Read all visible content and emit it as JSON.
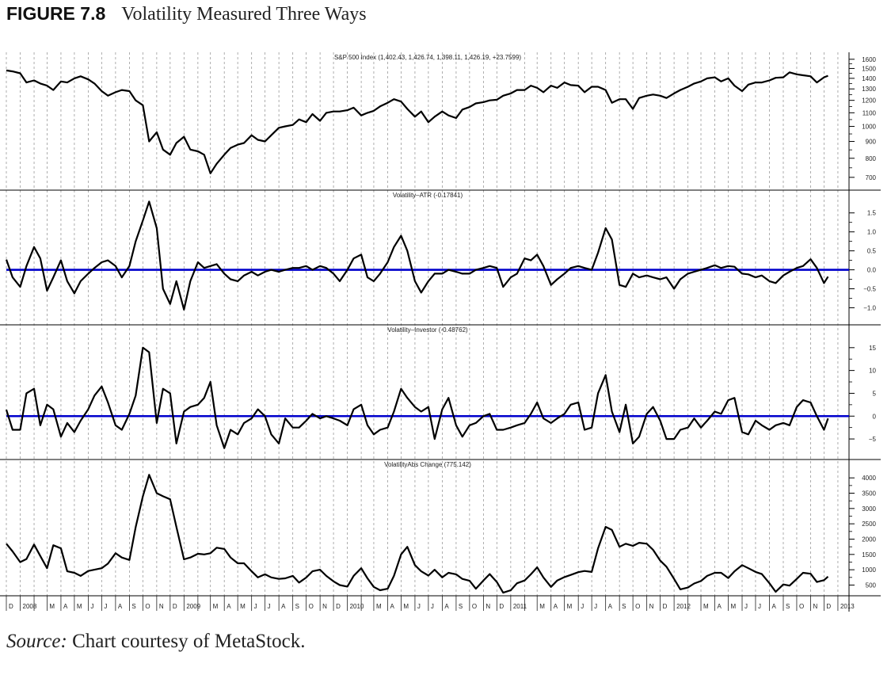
{
  "figure": {
    "number": "FIGURE 7.8",
    "title": "Volatility Measured Three Ways"
  },
  "caption": {
    "source_label": "Source:",
    "text": " Chart courtesy of MetaStock."
  },
  "colors": {
    "series": "#000000",
    "zero_line": "#0000cc",
    "grid": "#9a9a9a"
  },
  "chart_data": {
    "type": "line",
    "grid": "vertical dashed monthly",
    "x_tick_labels": [
      {
        "month": "2007-12",
        "label": "D"
      },
      {
        "month": "2008-01",
        "label": "2008"
      },
      {
        "month": "2008-02",
        "label": ""
      },
      {
        "month": "2008-03",
        "label": "M"
      },
      {
        "month": "2008-04",
        "label": "A"
      },
      {
        "month": "2008-05",
        "label": "M"
      },
      {
        "month": "2008-06",
        "label": "J"
      },
      {
        "month": "2008-07",
        "label": "J"
      },
      {
        "month": "2008-08",
        "label": "A"
      },
      {
        "month": "2008-09",
        "label": "S"
      },
      {
        "month": "2008-10",
        "label": "O"
      },
      {
        "month": "2008-11",
        "label": "N"
      },
      {
        "month": "2008-12",
        "label": "D"
      },
      {
        "month": "2009-01",
        "label": "2009"
      },
      {
        "month": "2009-02",
        "label": ""
      },
      {
        "month": "2009-03",
        "label": "M"
      },
      {
        "month": "2009-04",
        "label": "A"
      },
      {
        "month": "2009-05",
        "label": "M"
      },
      {
        "month": "2009-06",
        "label": "J"
      },
      {
        "month": "2009-07",
        "label": "J"
      },
      {
        "month": "2009-08",
        "label": "A"
      },
      {
        "month": "2009-09",
        "label": "S"
      },
      {
        "month": "2009-10",
        "label": "O"
      },
      {
        "month": "2009-11",
        "label": "N"
      },
      {
        "month": "2009-12",
        "label": "D"
      },
      {
        "month": "2010-01",
        "label": "2010"
      },
      {
        "month": "2010-02",
        "label": ""
      },
      {
        "month": "2010-03",
        "label": "M"
      },
      {
        "month": "2010-04",
        "label": "A"
      },
      {
        "month": "2010-05",
        "label": "M"
      },
      {
        "month": "2010-06",
        "label": "J"
      },
      {
        "month": "2010-07",
        "label": "J"
      },
      {
        "month": "2010-08",
        "label": "A"
      },
      {
        "month": "2010-09",
        "label": "S"
      },
      {
        "month": "2010-10",
        "label": "O"
      },
      {
        "month": "2010-11",
        "label": "N"
      },
      {
        "month": "2010-12",
        "label": "D"
      },
      {
        "month": "2011-01",
        "label": "2011"
      },
      {
        "month": "2011-02",
        "label": ""
      },
      {
        "month": "2011-03",
        "label": "M"
      },
      {
        "month": "2011-04",
        "label": "A"
      },
      {
        "month": "2011-05",
        "label": "M"
      },
      {
        "month": "2011-06",
        "label": "J"
      },
      {
        "month": "2011-07",
        "label": "J"
      },
      {
        "month": "2011-08",
        "label": "A"
      },
      {
        "month": "2011-09",
        "label": "S"
      },
      {
        "month": "2011-10",
        "label": "O"
      },
      {
        "month": "2011-11",
        "label": "N"
      },
      {
        "month": "2011-12",
        "label": "D"
      },
      {
        "month": "2012-01",
        "label": "2012"
      },
      {
        "month": "2012-02",
        "label": ""
      },
      {
        "month": "2012-03",
        "label": "M"
      },
      {
        "month": "2012-04",
        "label": "A"
      },
      {
        "month": "2012-05",
        "label": "M"
      },
      {
        "month": "2012-06",
        "label": "J"
      },
      {
        "month": "2012-07",
        "label": "J"
      },
      {
        "month": "2012-08",
        "label": "A"
      },
      {
        "month": "2012-09",
        "label": "S"
      },
      {
        "month": "2012-10",
        "label": "O"
      },
      {
        "month": "2012-11",
        "label": "N"
      },
      {
        "month": "2012-12",
        "label": "D"
      },
      {
        "month": "2013-01",
        "label": "2013"
      }
    ],
    "x": [
      "2007-12-01",
      "2007-12-15",
      "2008-01-01",
      "2008-01-15",
      "2008-02-01",
      "2008-02-15",
      "2008-03-01",
      "2008-03-15",
      "2008-04-01",
      "2008-04-15",
      "2008-05-01",
      "2008-05-15",
      "2008-06-01",
      "2008-06-15",
      "2008-07-01",
      "2008-07-15",
      "2008-08-01",
      "2008-08-15",
      "2008-09-01",
      "2008-09-15",
      "2008-10-01",
      "2008-10-15",
      "2008-11-01",
      "2008-11-15",
      "2008-12-01",
      "2008-12-15",
      "2009-01-01",
      "2009-01-15",
      "2009-02-01",
      "2009-02-15",
      "2009-03-01",
      "2009-03-15",
      "2009-04-01",
      "2009-04-15",
      "2009-05-01",
      "2009-05-15",
      "2009-06-01",
      "2009-06-15",
      "2009-07-01",
      "2009-07-15",
      "2009-08-01",
      "2009-08-15",
      "2009-09-01",
      "2009-09-15",
      "2009-10-01",
      "2009-10-15",
      "2009-11-01",
      "2009-11-15",
      "2009-12-01",
      "2009-12-15",
      "2010-01-01",
      "2010-01-15",
      "2010-02-01",
      "2010-02-15",
      "2010-03-01",
      "2010-03-15",
      "2010-04-01",
      "2010-04-15",
      "2010-05-01",
      "2010-05-15",
      "2010-06-01",
      "2010-06-15",
      "2010-07-01",
      "2010-07-15",
      "2010-08-01",
      "2010-08-15",
      "2010-09-01",
      "2010-09-15",
      "2010-10-01",
      "2010-10-15",
      "2010-11-01",
      "2010-11-15",
      "2010-12-01",
      "2010-12-15",
      "2011-01-01",
      "2011-01-15",
      "2011-02-01",
      "2011-02-15",
      "2011-03-01",
      "2011-03-15",
      "2011-04-01",
      "2011-04-15",
      "2011-05-01",
      "2011-05-15",
      "2011-06-01",
      "2011-06-15",
      "2011-07-01",
      "2011-07-15",
      "2011-08-01",
      "2011-08-15",
      "2011-09-01",
      "2011-09-15",
      "2011-10-01",
      "2011-10-15",
      "2011-11-01",
      "2011-11-15",
      "2011-12-01",
      "2011-12-15",
      "2012-01-01",
      "2012-01-15",
      "2012-02-01",
      "2012-02-15",
      "2012-03-01",
      "2012-03-15",
      "2012-04-01",
      "2012-04-15",
      "2012-05-01",
      "2012-05-15",
      "2012-06-01",
      "2012-06-15",
      "2012-07-01",
      "2012-07-15",
      "2012-08-01",
      "2012-08-15",
      "2012-09-01",
      "2012-09-15",
      "2012-10-01",
      "2012-10-15",
      "2012-11-01",
      "2012-11-15",
      "2012-12-01",
      "2012-12-10"
    ],
    "panels": [
      {
        "title": "S&P 500 Index (1,402.43, 1,426.74, 1,398.11, 1,426.19, +23.7599)",
        "scale": "log",
        "ylim": [
          640,
          1680
        ],
        "yticks": [
          700,
          800,
          900,
          1000,
          1100,
          1200,
          1300,
          1400,
          1500,
          1600
        ],
        "ytick_labels": [
          "700",
          "800",
          "900",
          "1000",
          "1100",
          "1200",
          "1300",
          "1400",
          "1500",
          "1600"
        ],
        "reference_line": null,
        "values": [
          1480,
          1470,
          1450,
          1360,
          1380,
          1350,
          1330,
          1290,
          1370,
          1360,
          1400,
          1420,
          1390,
          1350,
          1280,
          1240,
          1270,
          1290,
          1280,
          1200,
          1160,
          900,
          960,
          850,
          820,
          890,
          930,
          850,
          840,
          820,
          720,
          770,
          820,
          860,
          880,
          890,
          940,
          910,
          900,
          940,
          990,
          1000,
          1010,
          1050,
          1030,
          1090,
          1040,
          1100,
          1110,
          1110,
          1120,
          1140,
          1080,
          1100,
          1115,
          1150,
          1180,
          1210,
          1190,
          1130,
          1070,
          1110,
          1030,
          1070,
          1110,
          1080,
          1060,
          1125,
          1145,
          1175,
          1185,
          1200,
          1205,
          1240,
          1260,
          1290,
          1290,
          1330,
          1310,
          1270,
          1330,
          1310,
          1360,
          1335,
          1330,
          1270,
          1320,
          1320,
          1290,
          1180,
          1210,
          1210,
          1130,
          1220,
          1240,
          1250,
          1240,
          1220,
          1260,
          1290,
          1320,
          1350,
          1370,
          1400,
          1410,
          1370,
          1400,
          1330,
          1280,
          1340,
          1360,
          1360,
          1380,
          1405,
          1410,
          1460,
          1440,
          1430,
          1420,
          1360,
          1410,
          1426
        ]
      },
      {
        "title": "Volatility–ATR (-0.17841)",
        "scale": "linear",
        "ylim": [
          -1.45,
          2.1
        ],
        "yticks": [
          -1.0,
          -0.5,
          0.0,
          0.5,
          1.0,
          1.5
        ],
        "ytick_labels": [
          "−1.0",
          "−0.5",
          "0.0",
          "0.5",
          "1.0",
          "1.5"
        ],
        "reference_line": 0,
        "values": [
          0.27,
          -0.2,
          -0.45,
          0.1,
          0.6,
          0.3,
          -0.55,
          -0.2,
          0.25,
          -0.3,
          -0.62,
          -0.3,
          -0.1,
          0.05,
          0.2,
          0.25,
          0.1,
          -0.2,
          0.1,
          0.75,
          1.3,
          1.8,
          1.1,
          -0.5,
          -0.9,
          -0.3,
          -1.05,
          -0.3,
          0.2,
          0.05,
          0.1,
          0.15,
          -0.1,
          -0.25,
          -0.3,
          -0.15,
          -0.05,
          -0.15,
          -0.05,
          0,
          -0.05,
          0,
          0.05,
          0.05,
          0.1,
          0,
          0.1,
          0.05,
          -0.1,
          -0.3,
          0,
          0.3,
          0.4,
          -0.2,
          -0.3,
          -0.1,
          0.2,
          0.6,
          0.9,
          0.5,
          -0.3,
          -0.6,
          -0.3,
          -0.1,
          -0.1,
          0,
          -0.05,
          -0.1,
          -0.1,
          0,
          0.05,
          0.1,
          0.05,
          -0.45,
          -0.2,
          -0.1,
          0.3,
          0.25,
          0.4,
          0.1,
          -0.4,
          -0.25,
          -0.1,
          0.05,
          0.1,
          0.05,
          0,
          0.45,
          1.1,
          0.8,
          -0.4,
          -0.45,
          -0.1,
          -0.2,
          -0.15,
          -0.2,
          -0.25,
          -0.2,
          -0.5,
          -0.25,
          -0.1,
          -0.05,
          0,
          0.05,
          0.12,
          0.05,
          0.1,
          0.08,
          -0.1,
          -0.12,
          -0.2,
          -0.15,
          -0.3,
          -0.35,
          -0.15,
          -0.05,
          0.05,
          0.1,
          0.28,
          0.05,
          -0.35,
          -0.18
        ]
      },
      {
        "title": "Volatility–Investor (-0.48762)",
        "scale": "linear",
        "ylim": [
          -9.5,
          20
        ],
        "yticks": [
          -5,
          0,
          5,
          10,
          15
        ],
        "ytick_labels": [
          "−5",
          "0",
          "5",
          "10",
          "15"
        ],
        "reference_line": 0,
        "values": [
          1.4,
          -3,
          -3,
          5,
          6,
          -2,
          2.5,
          1.5,
          -4.5,
          -1.5,
          -3.5,
          -1,
          1.5,
          4.5,
          6.5,
          3,
          -2,
          -3,
          0.5,
          4.5,
          15,
          14,
          -1.5,
          6,
          5,
          -6,
          1,
          2,
          2.5,
          4,
          7.5,
          -2,
          -7,
          -3,
          -4,
          -1.5,
          -0.5,
          1.5,
          0,
          -4,
          -6,
          -0.5,
          -2.5,
          -2.5,
          -1,
          0.5,
          -0.5,
          0,
          -0.5,
          -1,
          -2,
          1.5,
          2.5,
          -2,
          -4,
          -3,
          -2.5,
          1,
          6,
          4,
          2,
          1,
          2,
          -5,
          1.5,
          4,
          -2,
          -4.5,
          -2,
          -1.5,
          0,
          0.5,
          -3,
          -3,
          -2.5,
          -2,
          -1.5,
          0.5,
          3,
          -0.5,
          -1.5,
          -0.5,
          0.5,
          2.5,
          3,
          -3,
          -2.5,
          5,
          9,
          1,
          -3.5,
          2.5,
          -6,
          -4.5,
          0.5,
          2,
          -1,
          -5,
          -5,
          -3,
          -2.5,
          -0.5,
          -2.5,
          -1,
          1,
          0.5,
          3.5,
          4,
          -3.5,
          -4,
          -1,
          -2,
          -3,
          -2,
          -1.5,
          -2,
          2,
          3.5,
          3,
          0,
          -3,
          -0.49
        ]
      },
      {
        "title": "VolatilityAbs Change (775.142)",
        "scale": "linear",
        "ylim": [
          150,
          4600
        ],
        "yticks": [
          500,
          1000,
          1500,
          2000,
          2500,
          3000,
          3500,
          4000
        ],
        "ytick_labels": [
          "500",
          "1000",
          "1500",
          "2000",
          "2500",
          "3000",
          "3500",
          "4000"
        ],
        "reference_line": null,
        "values": [
          1850,
          1600,
          1250,
          1350,
          1825,
          1450,
          1050,
          1800,
          1700,
          950,
          900,
          800,
          960,
          1000,
          1050,
          1200,
          1540,
          1400,
          1320,
          2390,
          3400,
          4100,
          3500,
          3400,
          3300,
          2400,
          1340,
          1400,
          1520,
          1500,
          1540,
          1720,
          1680,
          1400,
          1210,
          1210,
          950,
          750,
          850,
          750,
          700,
          720,
          800,
          580,
          745,
          950,
          1000,
          800,
          620,
          500,
          450,
          800,
          1050,
          720,
          440,
          330,
          380,
          800,
          1500,
          1750,
          1150,
          950,
          810,
          1000,
          750,
          900,
          850,
          700,
          640,
          380,
          650,
          860,
          600,
          250,
          330,
          560,
          650,
          850,
          1080,
          750,
          440,
          650,
          760,
          830,
          920,
          960,
          930,
          1700,
          2400,
          2300,
          1750,
          1850,
          1780,
          1880,
          1850,
          1650,
          1300,
          1100,
          700,
          360,
          420,
          550,
          630,
          800,
          900,
          900,
          730,
          950,
          1150,
          1050,
          930,
          860,
          560,
          280,
          520,
          480,
          700,
          900,
          870,
          600,
          660,
          775
        ]
      }
    ]
  }
}
